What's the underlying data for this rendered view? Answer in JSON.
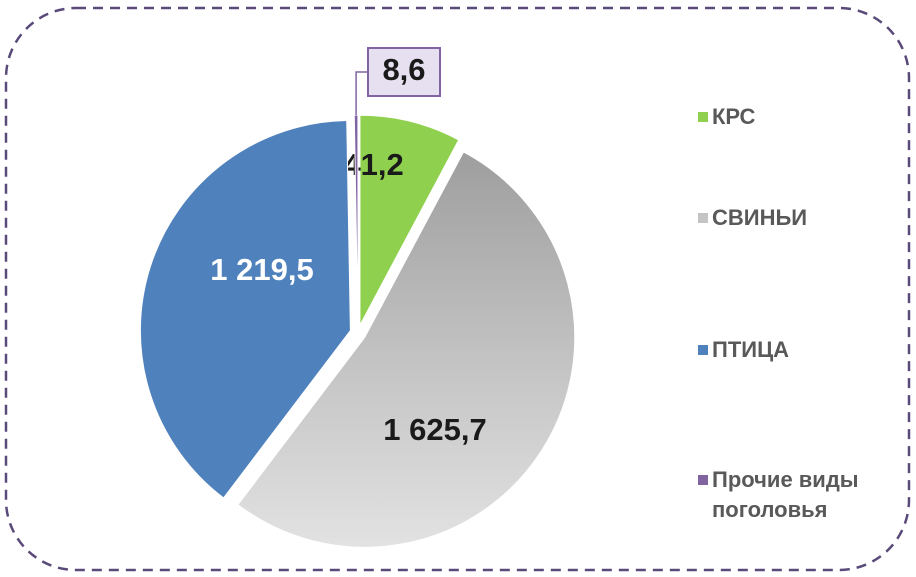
{
  "chart_data": {
    "type": "pie",
    "categories": [
      "КРС",
      "СВИНЬИ",
      "ПТИЦА",
      "Прочие виды поголовья"
    ],
    "values": [
      241.2,
      1625.7,
      1219.5,
      8.6
    ],
    "value_labels": [
      "241,2",
      "1 625,7",
      "1 219,5",
      "8,6"
    ],
    "colors": [
      "#8fd14f",
      "#c4c4c4",
      "#4f81bd",
      "#8064a2"
    ],
    "legend": "right"
  }
}
